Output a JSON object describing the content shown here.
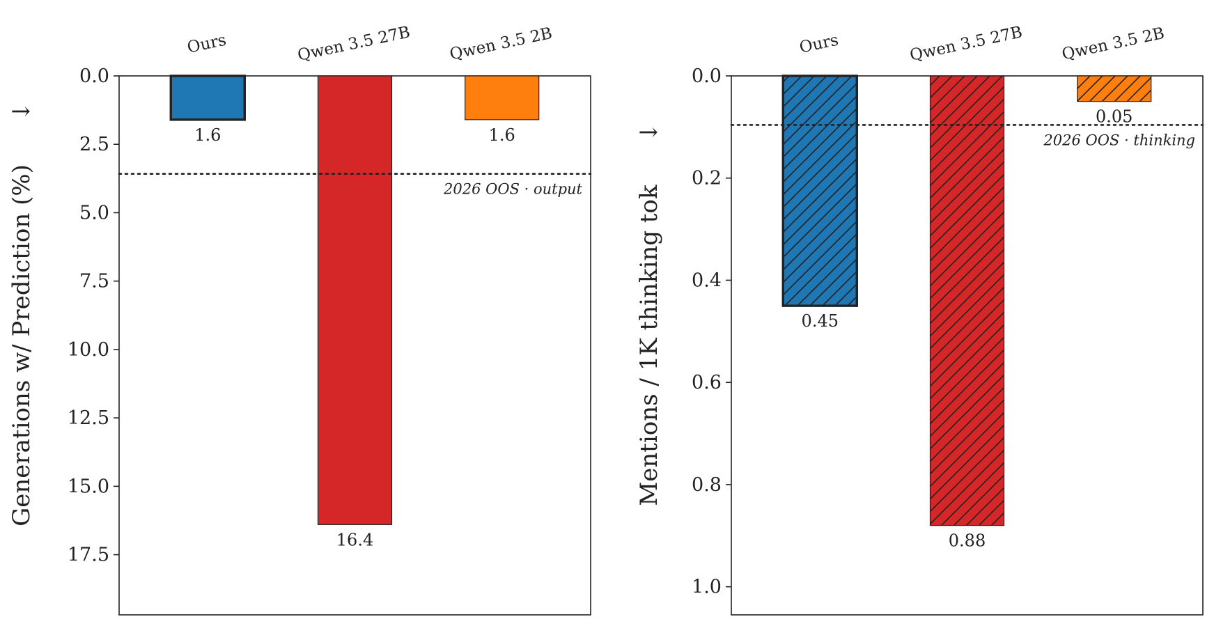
{
  "chart_data": [
    {
      "type": "bar",
      "categories": [
        "Ours",
        "Qwen 3.5 27B",
        "Qwen 3.5 2B"
      ],
      "values": [
        1.6,
        16.4,
        1.6
      ],
      "value_labels": [
        "1.6",
        "16.4",
        "1.6"
      ],
      "colors": [
        "#1f77b4",
        "#d62728",
        "#ff7f0e"
      ],
      "hatched": false,
      "highlight_first": true,
      "ylabel": "Generations w/ Prediction (%)",
      "arrow": "↓",
      "ylim": [
        0,
        19.7
      ],
      "inverted_y": true,
      "yticks": [
        0.0,
        2.5,
        5.0,
        7.5,
        10.0,
        12.5,
        15.0,
        17.5
      ],
      "ytick_labels": [
        "0.0",
        "2.5",
        "5.0",
        "7.5",
        "10.0",
        "12.5",
        "15.0",
        "17.5"
      ],
      "reference_line": {
        "value": 3.58,
        "label": "2026 OOS · output",
        "style": "dotted"
      },
      "grid": false
    },
    {
      "type": "bar",
      "categories": [
        "Ours",
        "Qwen 3.5 27B",
        "Qwen 3.5 2B"
      ],
      "values": [
        0.45,
        0.88,
        0.05
      ],
      "value_labels": [
        "0.45",
        "0.88",
        "0.05"
      ],
      "colors": [
        "#1f77b4",
        "#d62728",
        "#ff7f0e"
      ],
      "hatched": true,
      "highlight_first": true,
      "ylabel": "Mentions / 1K thinking tok",
      "arrow": "↓",
      "ylim": [
        0,
        1.055
      ],
      "inverted_y": true,
      "yticks": [
        0.0,
        0.2,
        0.4,
        0.6,
        0.8,
        1.0
      ],
      "ytick_labels": [
        "0.0",
        "0.2",
        "0.4",
        "0.6",
        "0.8",
        "1.0"
      ],
      "reference_line": {
        "value": 0.096,
        "label": "2026 OOS · thinking",
        "style": "dotted"
      },
      "grid": false
    }
  ]
}
